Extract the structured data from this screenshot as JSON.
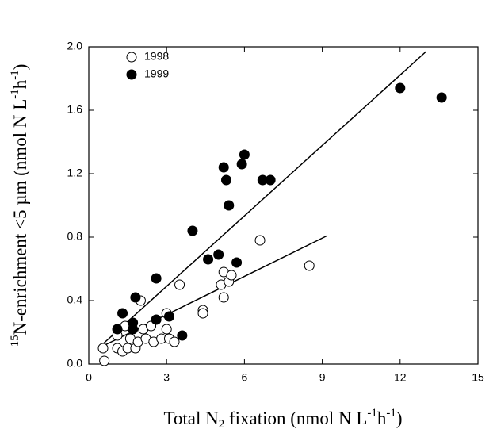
{
  "chart_data": {
    "type": "scatter",
    "xlabel": [
      {
        "text": "Total N",
        "shift": null
      },
      {
        "text": "2",
        "shift": "sub"
      },
      {
        "text": " fixation (nmol N L",
        "shift": null
      },
      {
        "text": "-1",
        "shift": "sup"
      },
      {
        "text": "h",
        "shift": null
      },
      {
        "text": "-1",
        "shift": "sup"
      },
      {
        "text": ")",
        "shift": null
      }
    ],
    "ylabel": [
      {
        "text": "15",
        "shift": "sup"
      },
      {
        "text": "N-enrichment <5 µm (nmol N L",
        "shift": null
      },
      {
        "text": "-1",
        "shift": "sup"
      },
      {
        "text": "h",
        "shift": null
      },
      {
        "text": "-1",
        "shift": "sup"
      },
      {
        "text": ")",
        "shift": null
      }
    ],
    "xlim": [
      0,
      15
    ],
    "xticks": [
      0,
      3,
      6,
      9,
      12,
      15
    ],
    "ylim": [
      0,
      2.0
    ],
    "yticks": [
      {
        "value": 0,
        "label": "0.0"
      },
      {
        "value": 0.4,
        "label": "0.4"
      },
      {
        "value": 0.8,
        "label": "0.8"
      },
      {
        "value": 1.2,
        "label": "1.2"
      },
      {
        "value": 1.6,
        "label": "1.6"
      },
      {
        "value": 2.0,
        "label": "2.0"
      }
    ],
    "legend": "upper left",
    "series": [
      {
        "name": "1998",
        "color": "#000000",
        "filled": false,
        "x": [
          0.55,
          0.6,
          1.1,
          1.1,
          1.3,
          1.4,
          1.5,
          1.6,
          1.8,
          1.9,
          2.0,
          2.1,
          2.2,
          2.4,
          2.5,
          2.8,
          3.0,
          3.0,
          3.1,
          3.3,
          3.5,
          4.4,
          4.4,
          5.1,
          5.2,
          5.2,
          5.4,
          5.5,
          6.6,
          8.5
        ],
        "values": [
          0.1,
          0.02,
          0.18,
          0.1,
          0.08,
          0.24,
          0.1,
          0.16,
          0.1,
          0.14,
          0.4,
          0.22,
          0.16,
          0.24,
          0.14,
          0.16,
          0.22,
          0.32,
          0.16,
          0.14,
          0.5,
          0.34,
          0.32,
          0.5,
          0.58,
          0.42,
          0.52,
          0.56,
          0.78,
          0.62
        ],
        "fit_x": [
          0.5,
          9.2
        ],
        "fit_y": [
          0.11,
          0.81
        ]
      },
      {
        "name": "1999",
        "color": "#000000",
        "filled": true,
        "x": [
          1.1,
          1.3,
          1.7,
          1.7,
          1.8,
          2.6,
          2.6,
          3.1,
          3.6,
          4.0,
          4.6,
          5.0,
          5.2,
          5.3,
          5.4,
          5.7,
          5.9,
          6.0,
          6.7,
          7.0,
          12.0,
          13.6
        ],
        "values": [
          0.22,
          0.32,
          0.26,
          0.22,
          0.42,
          0.54,
          0.28,
          0.3,
          0.18,
          0.84,
          0.66,
          0.69,
          1.24,
          1.16,
          1.0,
          0.64,
          1.26,
          1.32,
          1.16,
          1.16,
          1.74,
          1.68
        ],
        "fit_x": [
          0.5,
          13.0
        ],
        "fit_y": [
          0.12,
          1.97
        ]
      }
    ]
  }
}
